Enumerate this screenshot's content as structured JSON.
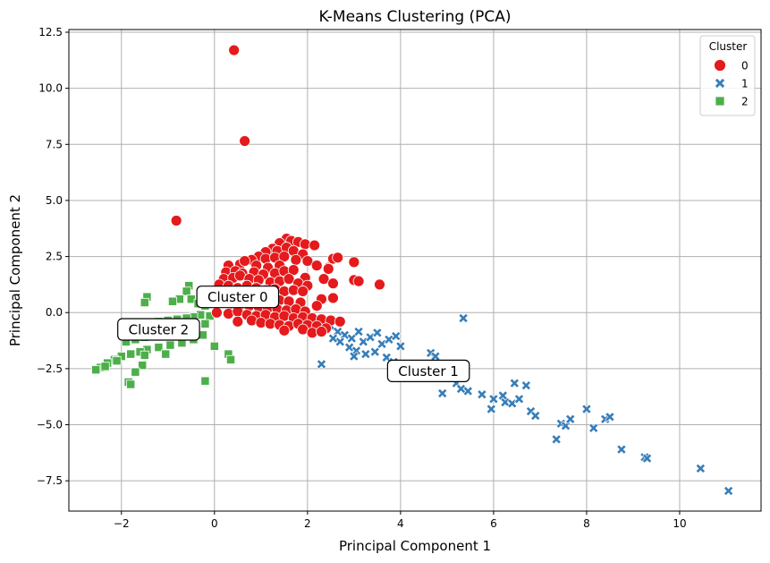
{
  "chart_data": {
    "type": "scatter",
    "title": "K-Means Clustering (PCA)",
    "xlabel": "Principal Component 1",
    "ylabel": "Principal Component 2",
    "xlim": [
      -3.13,
      11.75
    ],
    "ylim": [
      -8.85,
      12.62
    ],
    "xticks": [
      -2,
      0,
      2,
      4,
      6,
      8,
      10
    ],
    "yticks": [
      -7.5,
      -5.0,
      -2.5,
      0.0,
      2.5,
      5.0,
      7.5,
      10.0,
      12.5
    ],
    "xtick_labels": [
      "−2",
      "0",
      "2",
      "4",
      "6",
      "8",
      "10"
    ],
    "ytick_labels": [
      "−7.5",
      "−5.0",
      "−2.5",
      "0.0",
      "2.5",
      "5.0",
      "7.5",
      "10.0",
      "12.5"
    ],
    "grid": true,
    "legend": {
      "title": "Cluster",
      "position": "top-right",
      "entries": [
        "0",
        "1",
        "2"
      ]
    },
    "annotations": [
      {
        "text": "Cluster 0",
        "x": 0.5,
        "y": 0.7
      },
      {
        "text": "Cluster 1",
        "x": 4.6,
        "y": -2.6
      },
      {
        "text": "Cluster 2",
        "x": -1.2,
        "y": -0.75
      }
    ],
    "series": [
      {
        "name": "0",
        "marker": "circle",
        "color": "#e41a1c",
        "points": [
          [
            0.42,
            11.7
          ],
          [
            0.65,
            7.65
          ],
          [
            -0.82,
            4.1
          ],
          [
            1.55,
            3.3
          ],
          [
            1.4,
            3.1
          ],
          [
            1.65,
            3.2
          ],
          [
            1.8,
            3.15
          ],
          [
            1.95,
            3.05
          ],
          [
            2.15,
            3.0
          ],
          [
            1.25,
            2.85
          ],
          [
            1.1,
            2.7
          ],
          [
            1.35,
            2.75
          ],
          [
            1.55,
            2.9
          ],
          [
            1.7,
            2.75
          ],
          [
            1.9,
            2.6
          ],
          [
            0.95,
            2.5
          ],
          [
            0.8,
            2.35
          ],
          [
            1.1,
            2.4
          ],
          [
            1.3,
            2.45
          ],
          [
            1.5,
            2.5
          ],
          [
            1.75,
            2.35
          ],
          [
            2.0,
            2.3
          ],
          [
            2.2,
            2.1
          ],
          [
            2.45,
            2.0
          ],
          [
            2.55,
            2.4
          ],
          [
            3.0,
            2.25
          ],
          [
            2.65,
            2.45
          ],
          [
            0.3,
            2.1
          ],
          [
            0.55,
            2.15
          ],
          [
            0.65,
            2.3
          ],
          [
            0.9,
            2.1
          ],
          [
            1.15,
            2.0
          ],
          [
            1.4,
            2.1
          ],
          [
            0.25,
            1.8
          ],
          [
            0.45,
            1.85
          ],
          [
            0.6,
            1.75
          ],
          [
            0.85,
            1.8
          ],
          [
            1.05,
            1.7
          ],
          [
            1.3,
            1.75
          ],
          [
            1.5,
            1.85
          ],
          [
            1.7,
            1.9
          ],
          [
            1.95,
            1.55
          ],
          [
            2.35,
            1.5
          ],
          [
            2.45,
            1.95
          ],
          [
            2.55,
            1.3
          ],
          [
            3.0,
            1.45
          ],
          [
            3.1,
            1.4
          ],
          [
            3.55,
            1.25
          ],
          [
            0.2,
            1.5
          ],
          [
            0.4,
            1.55
          ],
          [
            0.55,
            1.65
          ],
          [
            0.75,
            1.5
          ],
          [
            0.95,
            1.45
          ],
          [
            1.2,
            1.35
          ],
          [
            1.4,
            1.4
          ],
          [
            1.6,
            1.5
          ],
          [
            1.8,
            1.3
          ],
          [
            2.0,
            1.2
          ],
          [
            0.1,
            1.25
          ],
          [
            0.3,
            1.2
          ],
          [
            0.5,
            1.1
          ],
          [
            0.7,
            1.2
          ],
          [
            0.9,
            1.1
          ],
          [
            1.1,
            1.0
          ],
          [
            1.3,
            1.05
          ],
          [
            1.5,
            0.95
          ],
          [
            1.7,
            1.0
          ],
          [
            1.9,
            0.95
          ],
          [
            -0.25,
            0.95
          ],
          [
            0.0,
            0.9
          ],
          [
            0.2,
            0.85
          ],
          [
            0.4,
            0.95
          ],
          [
            0.6,
            0.8
          ],
          [
            0.8,
            0.75
          ],
          [
            1.0,
            0.7
          ],
          [
            1.2,
            0.6
          ],
          [
            1.4,
            0.55
          ],
          [
            1.6,
            0.5
          ],
          [
            1.85,
            0.45
          ],
          [
            2.3,
            0.6
          ],
          [
            2.55,
            0.65
          ],
          [
            2.2,
            0.3
          ],
          [
            -0.1,
            0.5
          ],
          [
            0.15,
            0.45
          ],
          [
            0.35,
            0.4
          ],
          [
            0.55,
            0.35
          ],
          [
            0.75,
            0.3
          ],
          [
            0.95,
            0.25
          ],
          [
            1.15,
            0.2
          ],
          [
            1.35,
            0.15
          ],
          [
            1.55,
            0.1
          ],
          [
            1.75,
            0.15
          ],
          [
            1.95,
            0.05
          ],
          [
            0.05,
            0.0
          ],
          [
            0.3,
            -0.05
          ],
          [
            0.5,
            0.05
          ],
          [
            0.7,
            -0.1
          ],
          [
            0.9,
            -0.15
          ],
          [
            1.1,
            -0.1
          ],
          [
            1.3,
            -0.2
          ],
          [
            1.5,
            -0.15
          ],
          [
            1.7,
            -0.25
          ],
          [
            1.9,
            -0.2
          ],
          [
            2.1,
            -0.25
          ],
          [
            2.3,
            -0.3
          ],
          [
            2.5,
            -0.35
          ],
          [
            2.7,
            -0.4
          ],
          [
            0.5,
            -0.4
          ],
          [
            0.8,
            -0.35
          ],
          [
            1.0,
            -0.45
          ],
          [
            1.2,
            -0.5
          ],
          [
            1.4,
            -0.55
          ],
          [
            1.6,
            -0.6
          ],
          [
            1.8,
            -0.5
          ],
          [
            2.0,
            -0.55
          ],
          [
            2.2,
            -0.6
          ],
          [
            2.4,
            -0.7
          ],
          [
            1.5,
            -0.8
          ],
          [
            1.9,
            -0.75
          ],
          [
            2.1,
            -0.9
          ],
          [
            2.3,
            -0.85
          ]
        ]
      },
      {
        "name": "1",
        "marker": "x",
        "color": "#377eb8",
        "points": [
          [
            5.35,
            -0.25
          ],
          [
            2.3,
            -2.3
          ],
          [
            2.5,
            -0.6
          ],
          [
            2.65,
            -0.85
          ],
          [
            2.8,
            -1.0
          ],
          [
            2.95,
            -1.15
          ],
          [
            3.1,
            -0.85
          ],
          [
            3.2,
            -1.3
          ],
          [
            3.35,
            -1.1
          ],
          [
            3.5,
            -0.9
          ],
          [
            3.6,
            -1.4
          ],
          [
            3.75,
            -1.2
          ],
          [
            3.9,
            -1.05
          ],
          [
            4.0,
            -1.5
          ],
          [
            2.7,
            -1.3
          ],
          [
            2.9,
            -1.55
          ],
          [
            3.05,
            -1.7
          ],
          [
            3.25,
            -1.85
          ],
          [
            3.45,
            -1.75
          ],
          [
            3.7,
            -2.0
          ],
          [
            3.85,
            -2.2
          ],
          [
            4.05,
            -2.4
          ],
          [
            3.0,
            -1.95
          ],
          [
            2.55,
            -1.15
          ],
          [
            4.65,
            -1.8
          ],
          [
            4.75,
            -1.95
          ],
          [
            4.9,
            -3.6
          ],
          [
            5.2,
            -3.15
          ],
          [
            5.3,
            -3.4
          ],
          [
            5.45,
            -3.5
          ],
          [
            5.75,
            -3.65
          ],
          [
            5.95,
            -4.3
          ],
          [
            6.0,
            -3.85
          ],
          [
            6.2,
            -3.7
          ],
          [
            6.25,
            -4.0
          ],
          [
            6.4,
            -4.05
          ],
          [
            6.45,
            -3.15
          ],
          [
            6.55,
            -3.85
          ],
          [
            6.7,
            -3.25
          ],
          [
            6.8,
            -4.4
          ],
          [
            6.9,
            -4.6
          ],
          [
            7.35,
            -5.65
          ],
          [
            7.45,
            -4.95
          ],
          [
            7.55,
            -5.05
          ],
          [
            7.65,
            -4.75
          ],
          [
            8.0,
            -4.3
          ],
          [
            8.15,
            -5.15
          ],
          [
            8.4,
            -4.75
          ],
          [
            8.5,
            -4.65
          ],
          [
            8.75,
            -6.1
          ],
          [
            9.25,
            -6.45
          ],
          [
            9.3,
            -6.5
          ],
          [
            10.45,
            -6.95
          ],
          [
            11.05,
            -7.95
          ]
        ]
      },
      {
        "name": "2",
        "marker": "square",
        "color": "#4daf4a",
        "points": [
          [
            -0.55,
            1.2
          ],
          [
            -0.6,
            0.95
          ],
          [
            -0.75,
            0.6
          ],
          [
            -0.9,
            0.5
          ],
          [
            -1.45,
            0.7
          ],
          [
            -1.5,
            0.45
          ],
          [
            -0.5,
            0.6
          ],
          [
            -0.35,
            0.4
          ],
          [
            -0.2,
            0.3
          ],
          [
            -0.3,
            -0.1
          ],
          [
            -0.45,
            -0.2
          ],
          [
            -0.6,
            -0.25
          ],
          [
            -0.8,
            -0.3
          ],
          [
            -1.0,
            -0.35
          ],
          [
            -1.2,
            -0.4
          ],
          [
            -1.4,
            -0.45
          ],
          [
            -1.6,
            -0.55
          ],
          [
            -0.1,
            -0.15
          ],
          [
            -0.2,
            -0.5
          ],
          [
            -0.4,
            -0.6
          ],
          [
            -0.65,
            -0.7
          ],
          [
            -0.9,
            -0.8
          ],
          [
            -1.1,
            -0.9
          ],
          [
            -1.3,
            -1.0
          ],
          [
            -1.5,
            -1.1
          ],
          [
            -1.7,
            -1.2
          ],
          [
            -1.9,
            -1.3
          ],
          [
            -0.25,
            -1.0
          ],
          [
            -0.45,
            -1.2
          ],
          [
            -0.7,
            -1.35
          ],
          [
            -0.95,
            -1.45
          ],
          [
            -1.2,
            -1.55
          ],
          [
            -1.45,
            -1.65
          ],
          [
            -1.6,
            -1.75
          ],
          [
            -1.8,
            -1.85
          ],
          [
            -2.0,
            -1.95
          ],
          [
            -2.15,
            -2.1
          ],
          [
            -2.3,
            -2.25
          ],
          [
            -2.45,
            -2.45
          ],
          [
            -2.55,
            -2.55
          ],
          [
            0.0,
            -1.5
          ],
          [
            0.3,
            -1.85
          ],
          [
            0.35,
            -2.1
          ],
          [
            -1.5,
            -1.9
          ],
          [
            -1.55,
            -2.35
          ],
          [
            -1.7,
            -2.65
          ],
          [
            -1.85,
            -3.1
          ],
          [
            -1.8,
            -3.2
          ],
          [
            -1.05,
            -1.85
          ],
          [
            -0.2,
            -3.05
          ],
          [
            -2.35,
            -2.4
          ],
          [
            -2.1,
            -2.15
          ]
        ]
      }
    ]
  }
}
